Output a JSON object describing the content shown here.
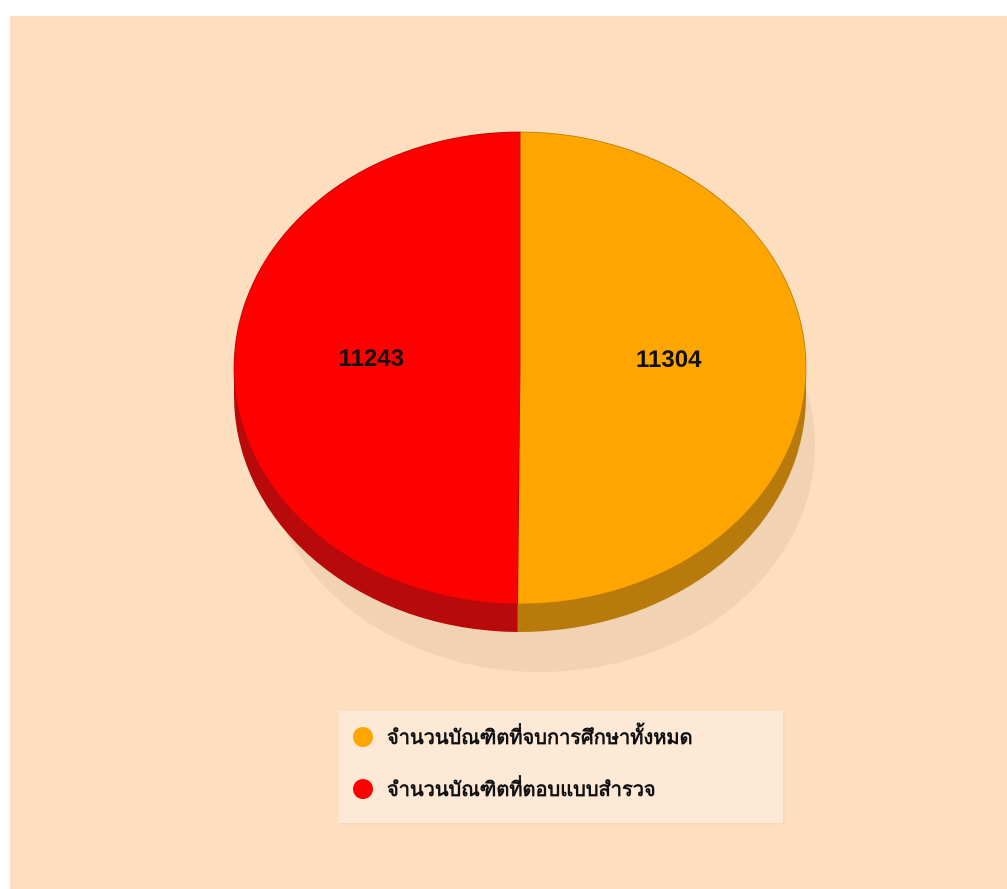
{
  "chart_data": {
    "type": "pie",
    "title": "",
    "slices": [
      {
        "label": "จำนวนบัณฑิตที่จบการศึกษาทั้งหมด",
        "value": 11304,
        "value_label": "11304",
        "color": "#ffa500",
        "side_color": "#b87a0a"
      },
      {
        "label": "จำนวนบัณฑิตที่ตอบแบบสำรวจ",
        "value": 11243,
        "value_label": "11243",
        "color": "#ff0000",
        "side_color": "#b80a0a"
      }
    ],
    "legend_position": "bottom-center",
    "three_d": true
  }
}
